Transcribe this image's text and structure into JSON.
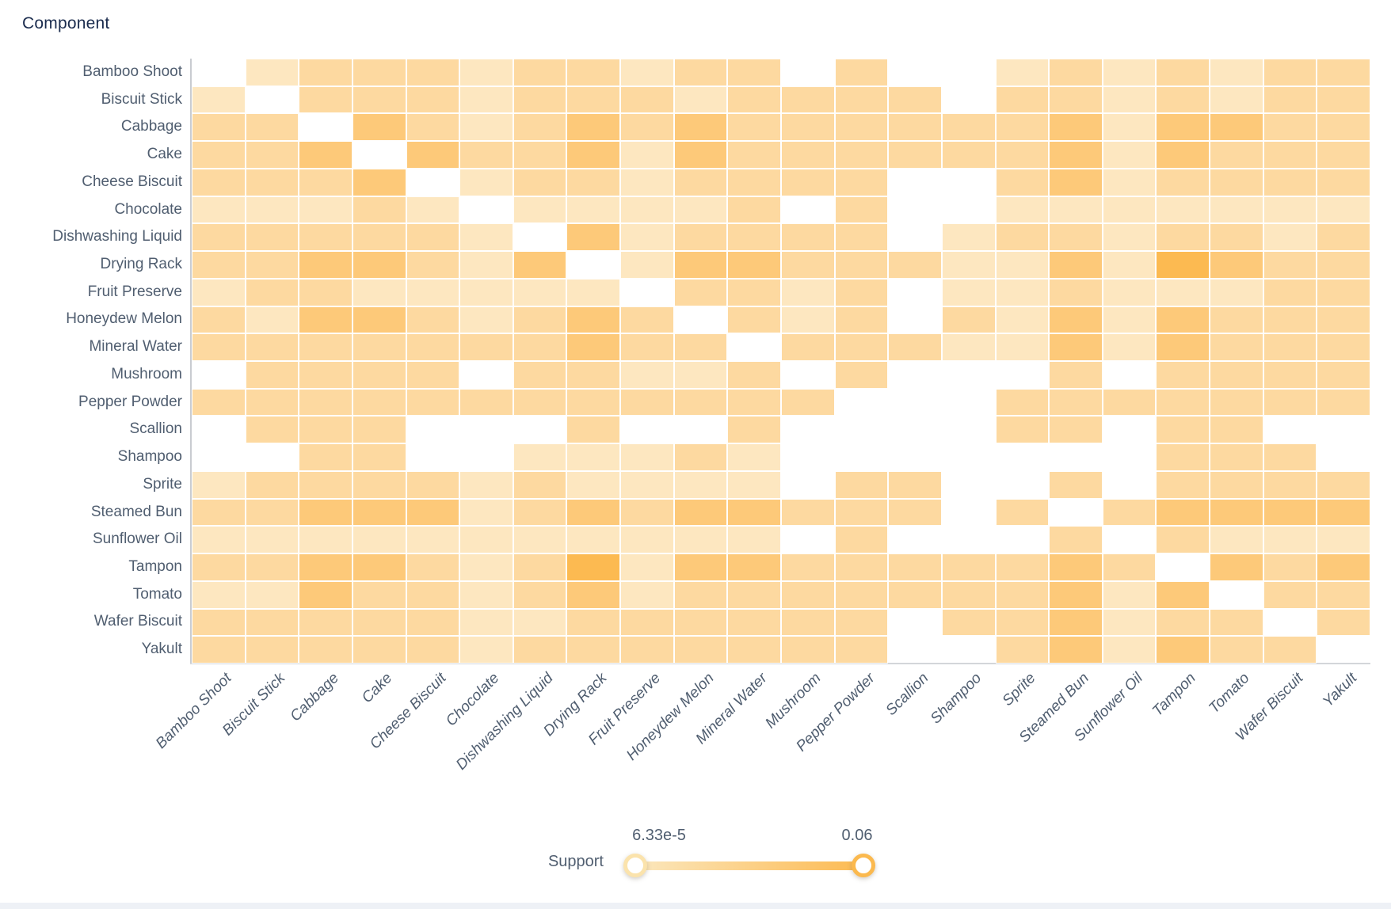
{
  "title": "Component",
  "legend": {
    "label": "Support",
    "min_label": "6.33e-5",
    "max_label": "0.06"
  },
  "colors": {
    "title": "#1b2c4e",
    "axis_label": "#505e70",
    "axis_line": "#c9ccd1",
    "palette_by_level": {
      "1": "#fdf0d8",
      "2": "#fde7c0",
      "3": "#fdd9a0",
      "4": "#fdc979",
      "5": "#fcba51"
    },
    "track_gradient_start": "#fbe7bd",
    "track_gradient_end": "#fcba52",
    "handle_min_border": "#fbe3ac",
    "handle_max_border": "#fbb94e",
    "bottom_bar": "#eef1f6"
  },
  "chart_data": {
    "type": "heatmap",
    "title": "Component",
    "xlabel": "",
    "ylabel": "Component",
    "legend_label": "Support",
    "support_range": [
      6.33e-05,
      0.06
    ],
    "x_categories": [
      "Bamboo Shoot",
      "Biscuit Stick",
      "Cabbage",
      "Cake",
      "Cheese Biscuit",
      "Chocolate",
      "Dishwashing Liquid",
      "Drying Rack",
      "Fruit Preserve",
      "Honeydew Melon",
      "Mineral Water",
      "Mushroom",
      "Pepper Powder",
      "Scallion",
      "Shampoo",
      "Sprite",
      "Steamed Bun",
      "Sunflower Oil",
      "Tampon",
      "Tomato",
      "Wafer Biscuit",
      "Yakult"
    ],
    "y_categories": [
      "Bamboo Shoot",
      "Biscuit Stick",
      "Cabbage",
      "Cake",
      "Cheese Biscuit",
      "Chocolate",
      "Dishwashing Liquid",
      "Drying Rack",
      "Fruit Preserve",
      "Honeydew Melon",
      "Mineral Water",
      "Mushroom",
      "Pepper Powder",
      "Scallion",
      "Shampoo",
      "Sprite",
      "Steamed Bun",
      "Sunflower Oil",
      "Tampon",
      "Tomato",
      "Wafer Biscuit",
      "Yakult"
    ],
    "value_encoding": "intensity level 0-5; 0 = blank (no itemset / diagonal), 1 = lightest (support near 6.33e-5), 5 = darkest (support near 0.06)",
    "approx_support_by_level": {
      "1": 0.004,
      "2": 0.01,
      "3": 0.02,
      "4": 0.035,
      "5": 0.055
    },
    "matrix": [
      [
        0,
        2,
        3,
        3,
        3,
        2,
        3,
        3,
        2,
        3,
        3,
        0,
        3,
        0,
        0,
        2,
        3,
        2,
        3,
        2,
        3,
        3
      ],
      [
        2,
        0,
        3,
        3,
        3,
        2,
        3,
        3,
        3,
        2,
        3,
        3,
        3,
        3,
        0,
        3,
        3,
        2,
        3,
        2,
        3,
        3
      ],
      [
        3,
        3,
        0,
        4,
        3,
        2,
        3,
        4,
        3,
        4,
        3,
        3,
        3,
        3,
        3,
        3,
        4,
        2,
        4,
        4,
        3,
        3
      ],
      [
        3,
        3,
        4,
        0,
        4,
        3,
        3,
        4,
        2,
        4,
        3,
        3,
        3,
        3,
        3,
        3,
        4,
        2,
        4,
        3,
        3,
        3
      ],
      [
        3,
        3,
        3,
        4,
        0,
        2,
        3,
        3,
        2,
        3,
        3,
        3,
        3,
        0,
        0,
        3,
        4,
        2,
        3,
        3,
        3,
        3
      ],
      [
        2,
        2,
        2,
        3,
        2,
        0,
        2,
        2,
        2,
        2,
        3,
        0,
        3,
        0,
        0,
        2,
        2,
        2,
        2,
        2,
        2,
        2
      ],
      [
        3,
        3,
        3,
        3,
        3,
        2,
        0,
        4,
        2,
        3,
        3,
        3,
        3,
        0,
        2,
        3,
        3,
        2,
        3,
        3,
        2,
        3
      ],
      [
        3,
        3,
        4,
        4,
        3,
        2,
        4,
        0,
        2,
        4,
        4,
        3,
        3,
        3,
        2,
        2,
        4,
        2,
        5,
        4,
        3,
        3
      ],
      [
        2,
        3,
        3,
        2,
        2,
        2,
        2,
        2,
        0,
        3,
        3,
        2,
        3,
        0,
        2,
        2,
        3,
        2,
        2,
        2,
        3,
        3
      ],
      [
        3,
        2,
        4,
        4,
        3,
        2,
        3,
        4,
        3,
        0,
        3,
        2,
        3,
        0,
        3,
        2,
        4,
        2,
        4,
        3,
        3,
        3
      ],
      [
        3,
        3,
        3,
        3,
        3,
        3,
        3,
        4,
        3,
        3,
        0,
        3,
        3,
        3,
        2,
        2,
        4,
        2,
        4,
        3,
        3,
        3
      ],
      [
        0,
        3,
        3,
        3,
        3,
        0,
        3,
        3,
        2,
        2,
        3,
        0,
        3,
        0,
        0,
        0,
        3,
        0,
        3,
        3,
        3,
        3
      ],
      [
        3,
        3,
        3,
        3,
        3,
        3,
        3,
        3,
        3,
        3,
        3,
        3,
        0,
        0,
        0,
        3,
        3,
        3,
        3,
        3,
        3,
        3
      ],
      [
        0,
        3,
        3,
        3,
        0,
        0,
        0,
        3,
        0,
        0,
        3,
        0,
        0,
        0,
        0,
        3,
        3,
        0,
        3,
        3,
        0,
        0
      ],
      [
        0,
        0,
        3,
        3,
        0,
        0,
        2,
        2,
        2,
        3,
        2,
        0,
        0,
        0,
        0,
        0,
        0,
        0,
        3,
        3,
        3,
        0
      ],
      [
        2,
        3,
        3,
        3,
        3,
        2,
        3,
        2,
        2,
        2,
        2,
        0,
        3,
        3,
        0,
        0,
        3,
        0,
        3,
        3,
        3,
        3
      ],
      [
        3,
        3,
        4,
        4,
        4,
        2,
        3,
        4,
        3,
        4,
        4,
        3,
        3,
        3,
        0,
        3,
        0,
        3,
        4,
        4,
        4,
        4
      ],
      [
        2,
        2,
        2,
        2,
        2,
        2,
        2,
        2,
        2,
        2,
        2,
        0,
        3,
        0,
        0,
        0,
        3,
        0,
        3,
        2,
        2,
        2
      ],
      [
        3,
        3,
        4,
        4,
        3,
        2,
        3,
        5,
        2,
        4,
        4,
        3,
        3,
        3,
        3,
        3,
        4,
        3,
        0,
        4,
        3,
        4
      ],
      [
        2,
        2,
        4,
        3,
        3,
        2,
        3,
        4,
        2,
        3,
        3,
        3,
        3,
        3,
        3,
        3,
        4,
        2,
        4,
        0,
        3,
        3
      ],
      [
        3,
        3,
        3,
        3,
        3,
        2,
        2,
        3,
        3,
        3,
        3,
        3,
        3,
        0,
        3,
        3,
        4,
        2,
        3,
        3,
        0,
        3
      ],
      [
        3,
        3,
        3,
        3,
        3,
        2,
        3,
        3,
        3,
        3,
        3,
        3,
        3,
        0,
        0,
        3,
        4,
        2,
        4,
        3,
        3,
        0
      ]
    ]
  }
}
